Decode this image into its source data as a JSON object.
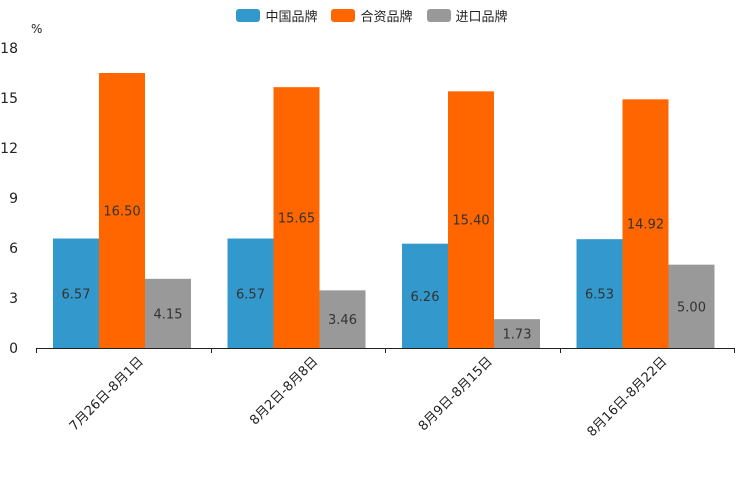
{
  "chart_data": {
    "type": "bar",
    "unit": "%",
    "categories": [
      "7月26日-8月1日",
      "8月2日-8月8日",
      "8月9日-8月15日",
      "8月16日-8月22日"
    ],
    "series": [
      {
        "name": "中国品牌",
        "color": "#3399cc",
        "values": [
          6.57,
          6.57,
          6.26,
          6.53
        ],
        "labels": [
          "6.57",
          "6.57",
          "6.26",
          "6.53"
        ]
      },
      {
        "name": "合资品牌",
        "color": "#ff6600",
        "values": [
          16.5,
          15.65,
          15.4,
          14.92
        ],
        "labels": [
          "16.50",
          "15.65",
          "15.40",
          "14.92"
        ]
      },
      {
        "name": "进口品牌",
        "color": "#999999",
        "values": [
          4.15,
          3.46,
          1.73,
          5.0
        ],
        "labels": [
          "4.15",
          "3.46",
          "1.73",
          "5.00"
        ]
      }
    ],
    "yticks": [
      "0",
      "3",
      "6",
      "9",
      "12",
      "15",
      "18"
    ],
    "ylim": [
      0,
      18
    ],
    "legend_position": "top-center"
  }
}
